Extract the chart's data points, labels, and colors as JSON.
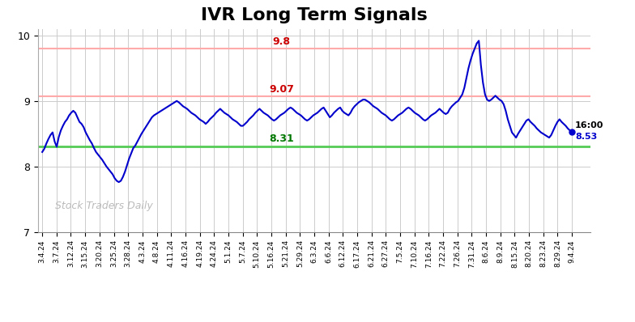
{
  "title": "IVR Long Term Signals",
  "title_fontsize": 16,
  "title_fontweight": "bold",
  "background_color": "#ffffff",
  "line_color": "#0000cc",
  "line_width": 1.5,
  "hline_red_upper": 9.8,
  "hline_red_lower": 9.07,
  "hline_green": 8.31,
  "hline_red_color": "#ffaaaa",
  "hline_green_color": "#55cc55",
  "label_9_8": "9.8",
  "label_9_07": "9.07",
  "label_8_31": "8.31",
  "label_red_color": "#cc0000",
  "label_green_color": "#007700",
  "watermark": "Stock Traders Daily",
  "watermark_color": "#bbbbbb",
  "last_label": "16:00",
  "last_value_label": "8.53",
  "last_dot_color": "#0000cc",
  "ylim": [
    7.0,
    10.1
  ],
  "yticks": [
    7,
    8,
    9,
    10
  ],
  "grid_color": "#cccccc",
  "xtick_labels": [
    "3.4.24",
    "3.7.24",
    "3.12.24",
    "3.15.24",
    "3.20.24",
    "3.25.24",
    "3.28.24",
    "4.3.24",
    "4.8.24",
    "4.11.24",
    "4.16.24",
    "4.19.24",
    "4.24.24",
    "5.1.24",
    "5.7.24",
    "5.10.24",
    "5.16.24",
    "5.21.24",
    "5.29.24",
    "6.3.24",
    "6.6.24",
    "6.12.24",
    "6.17.24",
    "6.21.24",
    "6.27.24",
    "7.5.24",
    "7.10.24",
    "7.16.24",
    "7.22.24",
    "7.26.24",
    "7.31.24",
    "8.6.24",
    "8.9.24",
    "8.15.24",
    "8.20.24",
    "8.23.24",
    "8.29.24",
    "9.4.24"
  ],
  "y_values": [
    8.22,
    8.27,
    8.35,
    8.42,
    8.48,
    8.52,
    8.38,
    8.3,
    8.45,
    8.55,
    8.62,
    8.68,
    8.72,
    8.78,
    8.82,
    8.85,
    8.82,
    8.75,
    8.68,
    8.65,
    8.6,
    8.52,
    8.46,
    8.4,
    8.35,
    8.28,
    8.22,
    8.18,
    8.14,
    8.1,
    8.05,
    8.0,
    7.96,
    7.92,
    7.88,
    7.82,
    7.78,
    7.76,
    7.78,
    7.84,
    7.92,
    8.02,
    8.12,
    8.2,
    8.28,
    8.32,
    8.38,
    8.44,
    8.5,
    8.55,
    8.6,
    8.65,
    8.7,
    8.75,
    8.78,
    8.8,
    8.82,
    8.84,
    8.86,
    8.88,
    8.9,
    8.92,
    8.94,
    8.96,
    8.98,
    9.0,
    8.98,
    8.95,
    8.92,
    8.9,
    8.88,
    8.85,
    8.82,
    8.8,
    8.78,
    8.75,
    8.72,
    8.7,
    8.68,
    8.65,
    8.68,
    8.72,
    8.75,
    8.78,
    8.82,
    8.85,
    8.88,
    8.85,
    8.82,
    8.8,
    8.78,
    8.75,
    8.72,
    8.7,
    8.68,
    8.65,
    8.62,
    8.62,
    8.65,
    8.68,
    8.72,
    8.75,
    8.78,
    8.82,
    8.85,
    8.88,
    8.85,
    8.82,
    8.8,
    8.78,
    8.75,
    8.72,
    8.7,
    8.72,
    8.75,
    8.78,
    8.8,
    8.82,
    8.85,
    8.88,
    8.9,
    8.88,
    8.85,
    8.82,
    8.8,
    8.78,
    8.75,
    8.72,
    8.7,
    8.72,
    8.75,
    8.78,
    8.8,
    8.82,
    8.85,
    8.88,
    8.9,
    8.85,
    8.8,
    8.75,
    8.78,
    8.82,
    8.85,
    8.88,
    8.9,
    8.85,
    8.82,
    8.8,
    8.78,
    8.82,
    8.88,
    8.92,
    8.95,
    8.98,
    9.0,
    9.02,
    9.02,
    9.0,
    8.98,
    8.95,
    8.92,
    8.9,
    8.88,
    8.85,
    8.82,
    8.8,
    8.78,
    8.75,
    8.72,
    8.7,
    8.72,
    8.75,
    8.78,
    8.8,
    8.82,
    8.85,
    8.88,
    8.9,
    8.88,
    8.85,
    8.82,
    8.8,
    8.78,
    8.75,
    8.72,
    8.7,
    8.72,
    8.75,
    8.78,
    8.8,
    8.82,
    8.85,
    8.88,
    8.85,
    8.82,
    8.8,
    8.82,
    8.88,
    8.92,
    8.95,
    8.98,
    9.0,
    9.05,
    9.1,
    9.2,
    9.35,
    9.5,
    9.62,
    9.72,
    9.8,
    9.88,
    9.92,
    9.55,
    9.28,
    9.1,
    9.02,
    9.0,
    9.02,
    9.05,
    9.08,
    9.05,
    9.02,
    9.0,
    8.95,
    8.85,
    8.72,
    8.62,
    8.52,
    8.48,
    8.44,
    8.5,
    8.55,
    8.6,
    8.65,
    8.7,
    8.72,
    8.68,
    8.65,
    8.62,
    8.58,
    8.55,
    8.52,
    8.5,
    8.48,
    8.46,
    8.44,
    8.48,
    8.55,
    8.62,
    8.68,
    8.72,
    8.68,
    8.65,
    8.62,
    8.58,
    8.55,
    8.53
  ]
}
